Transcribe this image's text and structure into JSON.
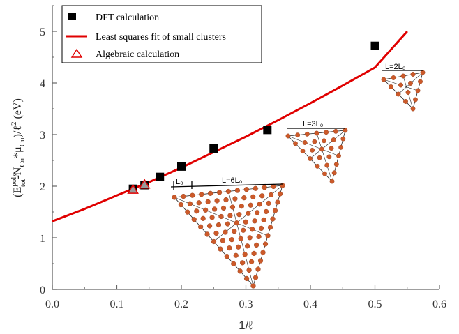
{
  "chart_data": {
    "type": "scatter",
    "x_range": [
      0.0,
      0.6
    ],
    "y_range": [
      0,
      5.5
    ],
    "x_ticks": [
      "0.0",
      "0.1",
      "0.2",
      "0.3",
      "0.4",
      "0.5",
      "0.6"
    ],
    "y_ticks": [
      "0",
      "1",
      "2",
      "3",
      "4",
      "5"
    ],
    "xlabel": "1/ℓ",
    "ylabel": {
      "open": "(E",
      "sup1": "poly",
      "sub1": "tot",
      "mid": "-N",
      "sub2": "Cu",
      "star": "*μ",
      "sub3": "Cu",
      "close": ")/ℓ",
      "sup2": "2",
      "unit": " (eV)"
    },
    "legend_position": "top-left",
    "series": [
      {
        "name": "DFT calculation",
        "marker": "filled-square",
        "color": "#000000",
        "x": [
          0.125,
          0.1429,
          0.1667,
          0.2,
          0.25,
          0.3333,
          0.5
        ],
        "y": [
          1.95,
          2.02,
          2.18,
          2.38,
          2.73,
          3.09,
          4.72
        ]
      },
      {
        "name": "Least squares fit of small clusters",
        "marker": "line",
        "color": "#e00000",
        "x": [
          0.0,
          0.05,
          0.1,
          0.15,
          0.2,
          0.25,
          0.3,
          0.35,
          0.4,
          0.45,
          0.5,
          0.55
        ],
        "y": [
          1.32,
          1.56,
          1.82,
          2.08,
          2.36,
          2.66,
          2.96,
          3.28,
          3.61,
          3.95,
          4.3,
          5.0
        ]
      },
      {
        "name": "Algebraic calculation",
        "marker": "open-triangle",
        "color": "#e00000",
        "x": [
          0.125,
          0.1429
        ],
        "y": [
          1.93,
          2.03
        ]
      }
    ],
    "annotations": [
      "L=2L₀",
      "L=3L₀",
      "L=6L₀",
      "L₀"
    ]
  }
}
